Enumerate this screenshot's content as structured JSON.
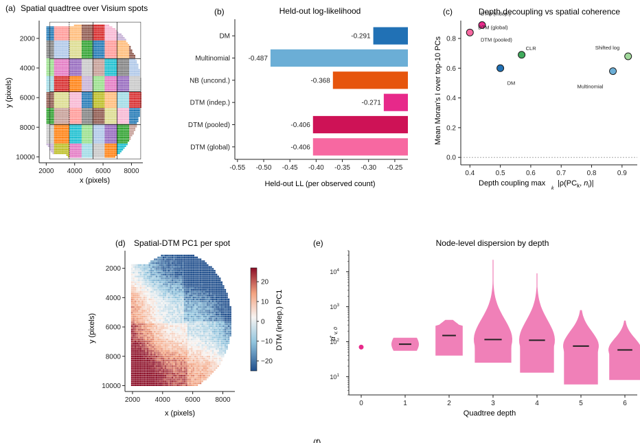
{
  "colors": {
    "bar_dm": "#2171b5",
    "bar_multinomial": "#6baed6",
    "bar_nb": "#e6550d",
    "bar_dtm_indep": "#e7298a",
    "bar_dtm_pooled": "#ce1256",
    "bar_dtm_global": "#f768a1",
    "violin": "#f080b8",
    "heat_pos": "#8b0d26",
    "heat_neg": "#1f4e8c"
  },
  "panels": {
    "a": {
      "label": "(a)",
      "title": "Spatial quadtree over Visium spots"
    },
    "b": {
      "label": "(b)",
      "title": "Held-out log-likelihood"
    },
    "c": {
      "label": "(c)",
      "title": "Depth decoupling vs spatial coherence"
    },
    "d": {
      "label": "(d)",
      "title": "Spatial-DTM PC1 per spot"
    },
    "e": {
      "label": "(e)",
      "title": "Node-level dispersion by depth"
    },
    "f": {
      "label": "(f)"
    }
  },
  "chart_data": [
    {
      "id": "a",
      "type": "scatter",
      "title": "Spatial quadtree over Visium spots",
      "xlabel": "x (pixels)",
      "ylabel": "y (pixels)",
      "xlim": [
        1500,
        8800
      ],
      "ylim": [
        10400,
        800
      ],
      "xticks": [
        2000,
        4000,
        6000,
        8000
      ],
      "yticks": [
        2000,
        4000,
        6000,
        8000,
        10000
      ],
      "grid_lines_x": [
        3620,
        5300,
        6980
      ],
      "grid_lines_y": [
        3380,
        5600,
        7820
      ],
      "tissue_region": "spots colored by quadtree leaf cell (qualitative palette)"
    },
    {
      "id": "b",
      "type": "bar",
      "orientation": "horizontal",
      "title": "Held-out log-likelihood",
      "xlabel": "Held-out LL (per observed count)",
      "categories": [
        "DM",
        "Multinomial",
        "NB (uncond.)",
        "DTM (indep.)",
        "DTM (pooled)",
        "DTM (global)"
      ],
      "values": [
        -0.291,
        -0.487,
        -0.368,
        -0.271,
        -0.406,
        -0.406
      ],
      "value_labels": [
        "-0.291",
        "-0.487",
        "-0.368",
        "-0.271",
        "-0.406",
        "-0.406"
      ],
      "xlim": [
        -0.555,
        -0.225
      ],
      "xticks": [
        "-0.55",
        "-0.50",
        "-0.45",
        "-0.40",
        "-0.35",
        "-0.30",
        "-0.25"
      ]
    },
    {
      "id": "c",
      "type": "scatter",
      "title": "Depth decoupling vs spatial coherence",
      "xlabel": "Depth coupling max_k |ρ(PC_k, n_i)|",
      "ylabel": "Mean Moran's I over top-10 PCs",
      "xlim": [
        0.37,
        0.95
      ],
      "ylim": [
        -0.05,
        0.92
      ],
      "xticks": [
        "0.4",
        "0.5",
        "0.6",
        "0.7",
        "0.8",
        "0.9"
      ],
      "yticks": [
        "0.0",
        "0.2",
        "0.4",
        "0.6",
        "0.8"
      ],
      "reference_line_y": 0.0,
      "points": [
        {
          "label": "DTM (global)",
          "x": 0.4,
          "y": 0.84,
          "color": "#f768a1"
        },
        {
          "label": "DTM (indep.)",
          "x": 0.44,
          "y": 0.89,
          "color": "#e7298a"
        },
        {
          "label": "DTM (pooled)",
          "x": 0.44,
          "y": 0.89,
          "color": "#ce1256"
        },
        {
          "label": "CLR",
          "x": 0.57,
          "y": 0.69,
          "color": "#41ab5d"
        },
        {
          "label": "DM",
          "x": 0.5,
          "y": 0.6,
          "color": "#2171b5"
        },
        {
          "label": "Multinomial",
          "x": 0.87,
          "y": 0.58,
          "color": "#6baed6"
        },
        {
          "label": "Shifted log",
          "x": 0.92,
          "y": 0.68,
          "color": "#a1d99b"
        }
      ]
    },
    {
      "id": "d",
      "type": "heatmap",
      "title": "Spatial-DTM PC1 per spot",
      "xlabel": "x (pixels)",
      "ylabel": "y (pixels)",
      "xticks": [
        2000,
        4000,
        6000,
        8000
      ],
      "yticks": [
        2000,
        4000,
        6000,
        8000,
        10000
      ],
      "colorbar_label": "DTM (indep.) PC1",
      "colorbar_ticks": [
        "20",
        "10",
        "0",
        "−10",
        "−20"
      ],
      "colorbar_range": [
        -25,
        27
      ]
    },
    {
      "id": "e",
      "type": "violin",
      "title": "Node-level dispersion by depth",
      "xlabel": "Quadtree depth",
      "ylabel": "α̂_v,0",
      "yscale": "log",
      "ylim": [
        3,
        40000
      ],
      "ytick_labels": [
        "10^1",
        "10^2",
        "10^3",
        "10^4"
      ],
      "categories": [
        "0",
        "1",
        "2",
        "3",
        "4",
        "5",
        "6"
      ],
      "medians": [
        70,
        85,
        150,
        115,
        110,
        75,
        58
      ],
      "min": [
        70,
        55,
        40,
        25,
        13,
        6,
        8
      ],
      "max": [
        70,
        130,
        420,
        22000,
        9000,
        800,
        400
      ]
    }
  ]
}
